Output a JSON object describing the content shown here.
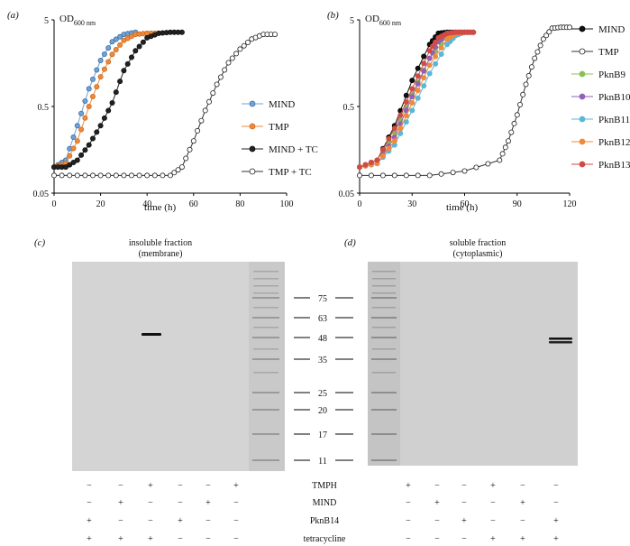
{
  "panel_a": {
    "label": "(a)",
    "ylabel_main": "OD",
    "ylabel_sub": "600 nm",
    "xlabel": "time (h)",
    "ytick_labels": [
      "5",
      "0.5",
      "0.05"
    ],
    "xtick_labels": [
      "0",
      "20",
      "40",
      "60",
      "80",
      "100"
    ],
    "legend": [
      "MIND",
      "TMP",
      "MIND + TC",
      "TMP + TC"
    ]
  },
  "panel_b": {
    "label": "(b)",
    "ylabel_main": "OD",
    "ylabel_sub": "600 nm",
    "xlabel": "time (h)",
    "ytick_labels": [
      "5",
      "0.5",
      "0.05"
    ],
    "xtick_labels": [
      "0",
      "30",
      "60",
      "90",
      "120"
    ],
    "legend": [
      "MIND",
      "TMP",
      "PknB9",
      "PknB10",
      "PknB11",
      "PknB12",
      "PknB13"
    ]
  },
  "panel_c": {
    "label": "(c)",
    "title": "insoluble fraction",
    "subtitle": "(membrane)"
  },
  "panel_d": {
    "label": "(d)",
    "title": "soluble fraction",
    "subtitle": "(cytoplasmic)"
  },
  "ladder_labels": [
    "75",
    "63",
    "48",
    "35",
    "25",
    "20",
    "17",
    "11"
  ],
  "row_labels": [
    "TMPH",
    "MIND",
    "PknB14",
    "tetracycline"
  ],
  "grid_c": [
    [
      "−",
      "−",
      "+",
      "−",
      "−",
      "+"
    ],
    [
      "−",
      "+",
      "−",
      "−",
      "+",
      "−"
    ],
    [
      "+",
      "−",
      "−",
      "+",
      "−",
      "−"
    ],
    [
      "+",
      "+",
      "+",
      "−",
      "−",
      "−"
    ]
  ],
  "grid_d": [
    [
      "+",
      "−",
      "−",
      "+",
      "−",
      "−"
    ],
    [
      "−",
      "+",
      "−",
      "−",
      "+",
      "−"
    ],
    [
      "−",
      "−",
      "+",
      "−",
      "−",
      "+"
    ],
    [
      "−",
      "−",
      "−",
      "+",
      "+",
      "+"
    ]
  ],
  "colors": {
    "MIND": "#3c3c3c",
    "TMP": "#f08a3a",
    "MIND + TC": "#222222",
    "TMP + TC": "#ffffff",
    "MIND_a": "#6fa3d8",
    "PknB9": "#8bbf56",
    "PknB10": "#8f62b8",
    "PknB11": "#5ab7d8",
    "PknB12": "#f08a3a",
    "PknB13": "#d24a45"
  },
  "chart_data": [
    {
      "type": "line",
      "title": "",
      "xlabel": "time (h)",
      "ylabel": "OD600 nm",
      "xlim": [
        0,
        100
      ],
      "ylim": [
        0.05,
        5
      ],
      "yscale": "log",
      "series": [
        {
          "name": "MIND",
          "x": [
            0,
            5,
            10,
            15,
            20,
            25,
            30,
            35
          ],
          "y": [
            0.1,
            0.12,
            0.3,
            0.8,
            1.7,
            2.8,
            3.4,
            3.6
          ]
        },
        {
          "name": "TMP",
          "x": [
            0,
            5,
            10,
            15,
            20,
            25,
            30,
            35,
            40,
            45
          ],
          "y": [
            0.1,
            0.11,
            0.2,
            0.5,
            1.1,
            2.0,
            2.9,
            3.4,
            3.5,
            3.5
          ]
        },
        {
          "name": "MIND + TC",
          "x": [
            0,
            5,
            10,
            15,
            20,
            25,
            30,
            35,
            40,
            45,
            50,
            55
          ],
          "y": [
            0.1,
            0.1,
            0.12,
            0.18,
            0.3,
            0.55,
            1.3,
            2.2,
            3.1,
            3.5,
            3.6,
            3.6
          ]
        },
        {
          "name": "TMP + TC",
          "x": [
            0,
            10,
            20,
            30,
            40,
            50,
            55,
            60,
            65,
            70,
            75,
            80,
            85,
            90,
            95
          ],
          "y": [
            0.08,
            0.08,
            0.08,
            0.08,
            0.08,
            0.08,
            0.1,
            0.2,
            0.45,
            0.9,
            1.6,
            2.3,
            3.0,
            3.4,
            3.4
          ]
        }
      ]
    },
    {
      "type": "line",
      "title": "",
      "xlabel": "time (h)",
      "ylabel": "OD600 nm",
      "xlim": [
        0,
        120
      ],
      "ylim": [
        0.05,
        5
      ],
      "yscale": "log",
      "series": [
        {
          "name": "MIND",
          "x": [
            0,
            10,
            20,
            30,
            40,
            45,
            50,
            55,
            60,
            65
          ],
          "y": [
            0.1,
            0.12,
            0.3,
            1.0,
            2.6,
            3.5,
            3.6,
            3.6,
            3.6,
            3.6
          ]
        },
        {
          "name": "TMP",
          "x": [
            0,
            20,
            40,
            60,
            80,
            85,
            90,
            95,
            100,
            105,
            110,
            115,
            120
          ],
          "y": [
            0.08,
            0.08,
            0.08,
            0.09,
            0.12,
            0.2,
            0.4,
            0.9,
            1.8,
            3.0,
            4.0,
            4.1,
            4.1
          ]
        },
        {
          "name": "PknB9",
          "x": [
            0,
            10,
            20,
            30,
            40,
            50,
            55,
            60,
            65
          ],
          "y": [
            0.1,
            0.12,
            0.25,
            0.7,
            1.8,
            3.2,
            3.5,
            3.6,
            3.6
          ]
        },
        {
          "name": "PknB10",
          "x": [
            0,
            10,
            20,
            30,
            40,
            45,
            50,
            55,
            60,
            65
          ],
          "y": [
            0.1,
            0.11,
            0.22,
            0.65,
            1.8,
            2.8,
            3.4,
            3.6,
            3.6,
            3.6
          ]
        },
        {
          "name": "PknB11",
          "x": [
            0,
            10,
            20,
            30,
            40,
            50,
            55,
            60,
            65
          ],
          "y": [
            0.1,
            0.11,
            0.18,
            0.45,
            1.2,
            2.6,
            3.3,
            3.6,
            3.6
          ]
        },
        {
          "name": "PknB12",
          "x": [
            0,
            10,
            20,
            30,
            40,
            50,
            55,
            60,
            65
          ],
          "y": [
            0.1,
            0.11,
            0.2,
            0.55,
            1.5,
            3.0,
            3.5,
            3.6,
            3.6
          ]
        },
        {
          "name": "PknB13",
          "x": [
            0,
            10,
            20,
            30,
            40,
            45,
            50,
            55,
            60,
            65
          ],
          "y": [
            0.1,
            0.12,
            0.28,
            0.8,
            2.2,
            3.1,
            3.5,
            3.6,
            3.6,
            3.6
          ]
        }
      ]
    }
  ]
}
